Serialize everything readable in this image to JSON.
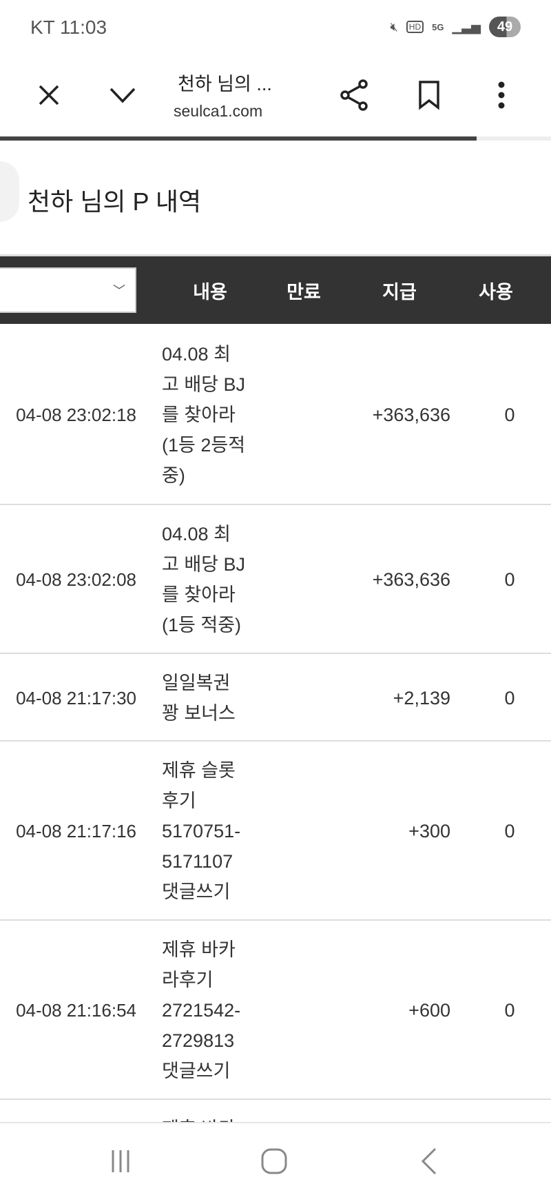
{
  "status_bar": {
    "carrier_time": "KT 11:03",
    "battery": "49",
    "icons": [
      "mute-icon",
      "hd-icon",
      "5g-icon",
      "signal-icon",
      "battery-icon"
    ]
  },
  "toolbar": {
    "title": "천하 님의 ...",
    "url": "seulca1.com",
    "icons": [
      "close-icon",
      "chevron-down-icon",
      "share-icon",
      "bookmark-icon",
      "more-icon"
    ]
  },
  "page": {
    "title": "천하 님의 P 내역",
    "load_progress": 0.865
  },
  "table": {
    "headers": [
      "내용",
      "만료",
      "지급",
      "사용"
    ],
    "rows": [
      {
        "date": "04-08 23:02:18",
        "content": [
          "04.08 최",
          "고 배당 BJ",
          "를 찾아라",
          "(1등 2등적",
          "중)"
        ],
        "paid": "+363,636",
        "used": "0"
      },
      {
        "date": "04-08 23:02:08",
        "content": [
          "04.08 최",
          "고 배당 BJ",
          "를 찾아라",
          "(1등 적중)"
        ],
        "paid": "+363,636",
        "used": "0"
      },
      {
        "date": "04-08 21:17:30",
        "content": [
          "일일복권",
          "꽝 보너스"
        ],
        "paid": "+2,139",
        "used": "0"
      },
      {
        "date": "04-08 21:17:16",
        "content": [
          "제휴 슬롯",
          "후기",
          "5170751-",
          "5171107",
          "댓글쓰기"
        ],
        "paid": "+300",
        "used": "0"
      },
      {
        "date": "04-08 21:16:54",
        "content": [
          "제휴 바카",
          "라후기",
          "2721542-",
          "2729813",
          "댓글쓰기"
        ],
        "paid": "+600",
        "used": "0"
      },
      {
        "date": "",
        "content": [
          "제휴 바카"
        ],
        "paid": "",
        "used": ""
      }
    ]
  },
  "nav": {
    "icons": [
      "recent-apps-icon",
      "home-icon",
      "back-icon"
    ]
  }
}
